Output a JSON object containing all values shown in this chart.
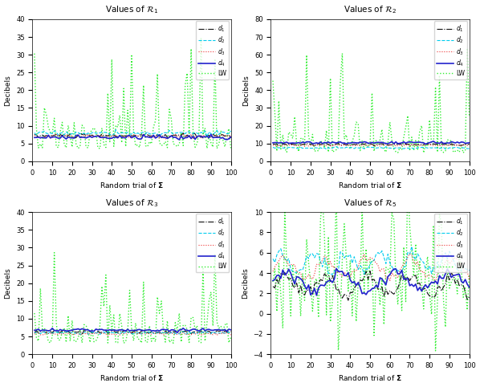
{
  "titles": [
    "Values of $\\mathcal{R}_1$",
    "Values of $\\mathcal{R}_2$",
    "Values of $\\mathcal{R}_3$",
    "Values of $\\mathcal{R}_5$"
  ],
  "xlabel": "Random trial of $\\boldsymbol{\\Sigma}$",
  "ylabel": "Decibels",
  "legend_labels": [
    "$d_1$",
    "$d_2$",
    "$d_3$",
    "$d_4$",
    "LW"
  ],
  "line_styles": [
    {
      "color": "#111111",
      "ls": "-.",
      "lw": 0.8
    },
    {
      "color": "#00ccee",
      "ls": "--",
      "lw": 0.8
    },
    {
      "color": "#ee3333",
      "ls": ":",
      "lw": 0.8
    },
    {
      "color": "#2222cc",
      "ls": "-",
      "lw": 1.2
    },
    {
      "color": "#33ee33",
      "ls": ":",
      "lw": 1.0
    }
  ],
  "subplots": [
    {
      "ylim": [
        0,
        40
      ],
      "yticks": [
        0,
        5,
        10,
        15,
        20,
        25,
        30,
        35,
        40
      ],
      "d_base": [
        7.2,
        7.9,
        7.0,
        6.8
      ],
      "d_noise": 0.3,
      "lw_base": 7.0,
      "lw_scale": 3.5,
      "lw_seed": 1,
      "d_seed": 10,
      "lw_mode": "abs_spiky"
    },
    {
      "ylim": [
        0,
        80
      ],
      "yticks": [
        0,
        10,
        20,
        30,
        40,
        50,
        60,
        70,
        80
      ],
      "d_base": [
        9.5,
        7.5,
        9.0,
        10.5
      ],
      "d_noise": 0.3,
      "lw_base": 9.0,
      "lw_scale": 7.0,
      "lw_seed": 2,
      "d_seed": 20,
      "lw_mode": "abs_spiky"
    },
    {
      "ylim": [
        0,
        40
      ],
      "yticks": [
        0,
        5,
        10,
        15,
        20,
        25,
        30,
        35,
        40
      ],
      "d_base": [
        6.3,
        6.0,
        5.8,
        6.8
      ],
      "d_noise": 0.2,
      "lw_base": 6.2,
      "lw_scale": 3.0,
      "lw_seed": 3,
      "d_seed": 30,
      "lw_mode": "abs_spiky"
    },
    {
      "ylim": [
        -4,
        10
      ],
      "yticks": [
        -4,
        -2,
        0,
        2,
        4,
        6,
        8,
        10
      ],
      "d_base": [
        2.8,
        5.0,
        4.5,
        3.2
      ],
      "d_noise": 0.6,
      "lw_base": 3.0,
      "lw_scale": 3.5,
      "lw_seed": 4,
      "d_seed": 40,
      "lw_mode": "bipolar"
    }
  ]
}
